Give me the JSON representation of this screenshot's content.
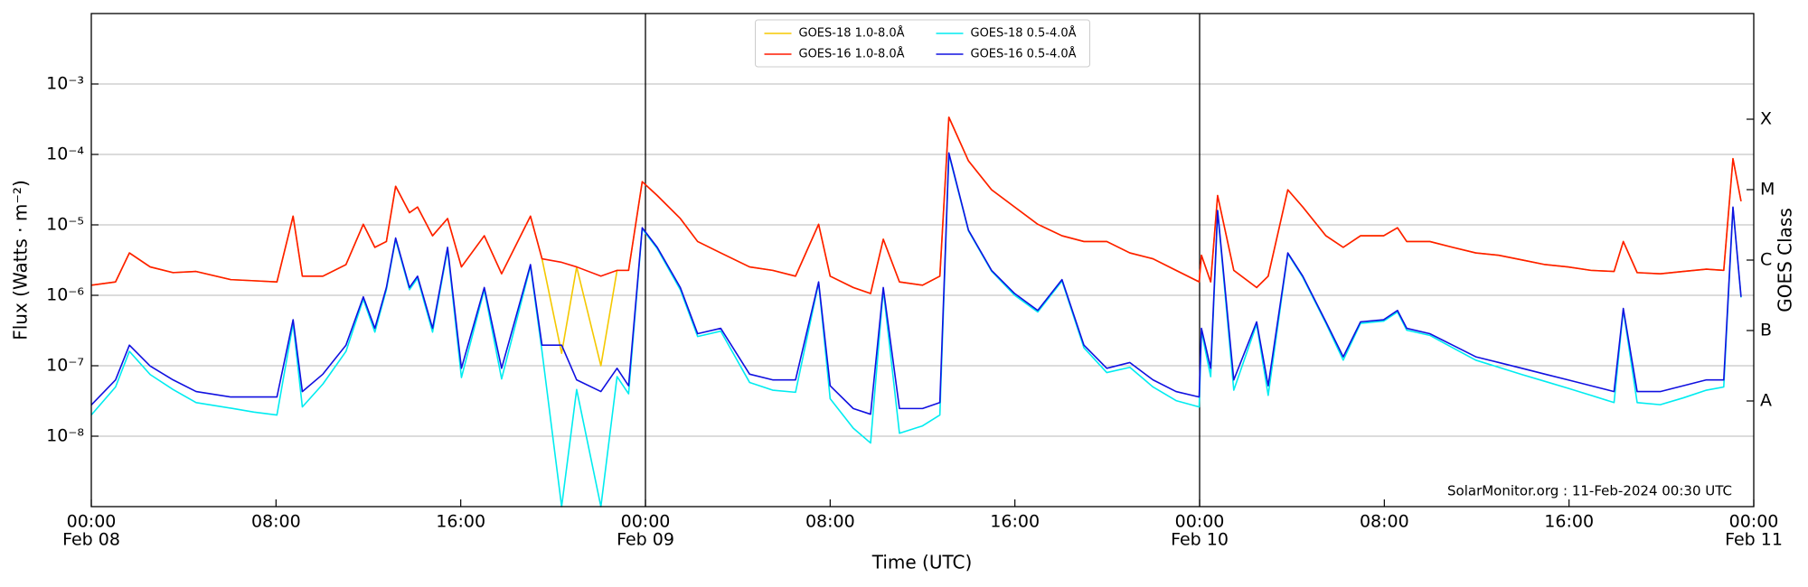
{
  "chart_data": {
    "type": "line",
    "ylabel": "Flux (Watts · m⁻²)",
    "xlabel": "Time (UTC)",
    "y2label": "GOES Class",
    "annotation": "SolarMonitor.org : 11-Feb-2024 00:30 UTC",
    "yscale": "log",
    "grid": true,
    "legend": "upper center",
    "xlim": [
      0,
      72
    ],
    "xticks": [
      {
        "value": 0,
        "label": "00:00"
      },
      {
        "value": 8,
        "label": "08:00"
      },
      {
        "value": 16,
        "label": "16:00"
      },
      {
        "value": 24,
        "label": "00:00"
      },
      {
        "value": 32,
        "label": "08:00"
      },
      {
        "value": 40,
        "label": "16:00"
      },
      {
        "value": 48,
        "label": "00:00"
      },
      {
        "value": 56,
        "label": "08:00"
      },
      {
        "value": 64,
        "label": "16:00"
      },
      {
        "value": 72,
        "label": "00:00"
      }
    ],
    "date_ticks": [
      {
        "value": 0,
        "label": "Feb 08"
      },
      {
        "value": 24,
        "label": "Feb 09"
      },
      {
        "value": 48,
        "label": "Feb 10"
      },
      {
        "value": 72,
        "label": "Feb 11"
      }
    ],
    "ylim": [
      1e-09,
      0.01
    ],
    "yticks": [
      {
        "value": 1e-08,
        "label": "10⁻⁸"
      },
      {
        "value": 1e-07,
        "label": "10⁻⁷"
      },
      {
        "value": 1e-06,
        "label": "10⁻⁶"
      },
      {
        "value": 1e-05,
        "label": "10⁻⁵"
      },
      {
        "value": 0.0001,
        "label": "10⁻⁴"
      },
      {
        "value": 0.001,
        "label": "10⁻³"
      }
    ],
    "y2lim": [
      1e-09,
      0.01
    ],
    "y2ticks": [
      {
        "value": 3.162e-08,
        "label": "A"
      },
      {
        "value": 3.162e-07,
        "label": "B"
      },
      {
        "value": 3.162e-06,
        "label": "C"
      },
      {
        "value": 3.162e-05,
        "label": "M"
      },
      {
        "value": 0.0003162,
        "label": "X"
      }
    ],
    "x": [
      0,
      1.05,
      1.65,
      2.55,
      3.54,
      4.54,
      6.04,
      7.04,
      8.04,
      8.74,
      9.14,
      10.03,
      11.03,
      11.78,
      12.28,
      12.78,
      13.18,
      13.78,
      14.13,
      14.78,
      15.43,
      16.03,
      17.02,
      17.77,
      19.02,
      19.52,
      20.37,
      21.02,
      22.07,
      22.77,
      23.27,
      23.86,
      24.51,
      25.51,
      26.26,
      27.26,
      28.51,
      29.51,
      30.5,
      31.5,
      32.0,
      33.0,
      33.75,
      34.3,
      35.0,
      36.0,
      36.75,
      37.14,
      37.99,
      38.99,
      39.99,
      40.99,
      42.04,
      42.99,
      43.98,
      44.98,
      45.98,
      46.98,
      47.98,
      48.08,
      48.48,
      48.78,
      49.48,
      50.47,
      50.97,
      51.82,
      52.47,
      53.47,
      54.22,
      54.97,
      55.97,
      56.57,
      56.97,
      57.97,
      58.96,
      59.96,
      60.96,
      61.96,
      62.96,
      63.95,
      64.95,
      65.95,
      66.35,
      66.95,
      67.95,
      68.95,
      69.95,
      70.7,
      71.1,
      71.45
    ],
    "series": [
      {
        "name": "GOES-18 1.0-8.0Å",
        "color": "#f5c800",
        "values": [
          1.39e-06,
          1.55e-06,
          4e-06,
          2.53e-06,
          2.1e-06,
          2.18e-06,
          1.67e-06,
          1.61e-06,
          1.55e-06,
          1.33e-05,
          1.87e-06,
          1.87e-06,
          2.73e-06,
          1.02e-05,
          4.8e-06,
          5.8e-06,
          3.53e-05,
          1.49e-05,
          1.79e-05,
          7e-06,
          1.23e-05,
          2.53e-06,
          7e-06,
          2.02e-06,
          1.33e-05,
          3.3e-06,
          1.5e-07,
          2.53e-06,
          1e-07,
          2.26e-06,
          2.26e-06,
          4.1e-05,
          2.61e-05,
          1.23e-05,
          5.8e-06,
          4e-06,
          2.53e-06,
          2.26e-06,
          1.87e-06,
          1.02e-05,
          1.87e-06,
          1.29e-06,
          1.06e-06,
          6.25e-06,
          1.55e-06,
          1.39e-06,
          1.87e-06,
          0.000338,
          8.1e-05,
          3.15e-05,
          1.79e-05,
          1.02e-05,
          7e-06,
          5.8e-06,
          5.8e-06,
          4e-06,
          3.3e-06,
          2.26e-06,
          1.55e-06,
          3.7e-06,
          1.55e-06,
          2.61e-05,
          2.26e-06,
          1.29e-06,
          1.87e-06,
          3.15e-05,
          1.79e-05,
          7e-06,
          4.8e-06,
          7e-06,
          7e-06,
          9.1e-06,
          5.8e-06,
          5.8e-06,
          4.8e-06,
          4e-06,
          3.7e-06,
          3.18e-06,
          2.73e-06,
          2.53e-06,
          2.26e-06,
          2.18e-06,
          5.8e-06,
          2.1e-06,
          2.02e-06,
          2.18e-06,
          2.35e-06,
          2.26e-06,
          8.7e-05,
          2.16e-05
        ]
      },
      {
        "name": "GOES-16 1.0-8.0Å",
        "color": "#ff1a00",
        "values": [
          1.39e-06,
          1.55e-06,
          4e-06,
          2.53e-06,
          2.1e-06,
          2.18e-06,
          1.67e-06,
          1.61e-06,
          1.55e-06,
          1.33e-05,
          1.87e-06,
          1.87e-06,
          2.73e-06,
          1.02e-05,
          4.8e-06,
          5.8e-06,
          3.53e-05,
          1.49e-05,
          1.79e-05,
          7e-06,
          1.23e-05,
          2.53e-06,
          7e-06,
          2.02e-06,
          1.33e-05,
          3.3e-06,
          2.94e-06,
          2.53e-06,
          1.87e-06,
          2.26e-06,
          2.26e-06,
          4.1e-05,
          2.61e-05,
          1.23e-05,
          5.8e-06,
          4e-06,
          2.53e-06,
          2.26e-06,
          1.87e-06,
          1.02e-05,
          1.87e-06,
          1.29e-06,
          1.06e-06,
          6.25e-06,
          1.55e-06,
          1.39e-06,
          1.87e-06,
          0.000338,
          8.1e-05,
          3.15e-05,
          1.79e-05,
          1.02e-05,
          7e-06,
          5.8e-06,
          5.8e-06,
          4e-06,
          3.3e-06,
          2.26e-06,
          1.55e-06,
          3.7e-06,
          1.55e-06,
          2.61e-05,
          2.26e-06,
          1.29e-06,
          1.87e-06,
          3.15e-05,
          1.79e-05,
          7e-06,
          4.8e-06,
          7e-06,
          7e-06,
          9.1e-06,
          5.8e-06,
          5.8e-06,
          4.8e-06,
          4e-06,
          3.7e-06,
          3.18e-06,
          2.73e-06,
          2.53e-06,
          2.26e-06,
          2.18e-06,
          5.8e-06,
          2.1e-06,
          2.02e-06,
          2.18e-06,
          2.35e-06,
          2.26e-06,
          8.7e-05,
          2.16e-05
        ]
      },
      {
        "name": "GOES-18 0.5-4.0Å",
        "color": "#00ecf0",
        "values": [
          2e-08,
          5e-08,
          1.6e-07,
          7.5e-08,
          4.6e-08,
          3e-08,
          2.5e-08,
          2.2e-08,
          2e-08,
          4e-07,
          2.6e-08,
          5.5e-08,
          1.6e-07,
          8.8e-07,
          3e-07,
          1.2e-06,
          6.2e-06,
          1.2e-06,
          1.75e-06,
          3e-07,
          4.5e-06,
          6.8e-08,
          1.2e-06,
          6.5e-08,
          2.6e-06,
          1.6e-07,
          1e-09,
          4.6e-08,
          1e-09,
          7e-08,
          4e-08,
          8.8e-06,
          4.6e-06,
          1.2e-06,
          2.6e-07,
          3.1e-07,
          5.8e-08,
          4.5e-08,
          4.2e-08,
          1.5e-06,
          3.4e-08,
          1.3e-08,
          8e-09,
          1.2e-06,
          1.1e-08,
          1.4e-08,
          2e-08,
          0.0001,
          8.2e-06,
          2.2e-06,
          1e-06,
          5.8e-07,
          1.6e-06,
          1.8e-07,
          8e-08,
          9.5e-08,
          5e-08,
          3.2e-08,
          2.6e-08,
          3.1e-07,
          7e-08,
          1.55e-05,
          4.5e-08,
          3.9e-07,
          3.8e-08,
          3.9e-06,
          1.8e-06,
          4e-07,
          1.2e-07,
          4e-07,
          4.3e-07,
          5.8e-07,
          3.2e-07,
          2.7e-07,
          1.8e-07,
          1.2e-07,
          9.5e-08,
          7.5e-08,
          6e-08,
          4.8e-08,
          3.8e-08,
          3e-08,
          6.2e-07,
          3e-08,
          2.8e-08,
          3.5e-08,
          4.5e-08,
          5e-08,
          1.75e-05,
          9.3e-07
        ]
      },
      {
        "name": "GOES-16 0.5-4.0Å",
        "color": "#1010e0",
        "values": [
          2.77e-08,
          6.3e-08,
          1.96e-07,
          9.9e-08,
          6.3e-08,
          4.3e-08,
          3.6e-08,
          3.6e-08,
          3.6e-08,
          4.5e-07,
          4.3e-08,
          7.6e-08,
          1.96e-07,
          9.5e-07,
          3.4e-07,
          1.29e-06,
          6.5e-06,
          1.29e-06,
          1.87e-06,
          3.4e-07,
          4.8e-06,
          9.2e-08,
          1.29e-06,
          9.2e-08,
          2.73e-06,
          1.96e-07,
          1.96e-07,
          6.3e-08,
          4.3e-08,
          9.2e-08,
          5.2e-08,
          9.1e-06,
          4.8e-06,
          1.29e-06,
          2.85e-07,
          3.4e-07,
          7.6e-08,
          6.3e-08,
          6.3e-08,
          1.55e-06,
          5.2e-08,
          2.47e-08,
          2.05e-08,
          1.29e-06,
          2.47e-08,
          2.47e-08,
          3e-08,
          0.000105,
          8.4e-06,
          2.26e-06,
          1.06e-06,
          6.1e-07,
          1.67e-06,
          1.96e-07,
          9.2e-08,
          1.11e-07,
          6.3e-08,
          4.3e-08,
          3.6e-08,
          3.4e-07,
          9.2e-08,
          1.6e-05,
          6.3e-08,
          4.2e-07,
          5.2e-08,
          4e-06,
          1.87e-06,
          4.2e-07,
          1.34e-07,
          4.2e-07,
          4.5e-07,
          6.1e-07,
          3.4e-07,
          2.85e-07,
          1.96e-07,
          1.34e-07,
          1.11e-07,
          9.2e-08,
          7.6e-08,
          6.3e-08,
          5.2e-08,
          4.3e-08,
          6.5e-07,
          4.3e-08,
          4.3e-08,
          5.2e-08,
          6.3e-08,
          6.3e-08,
          1.79e-05,
          9.5e-07
        ]
      }
    ]
  }
}
